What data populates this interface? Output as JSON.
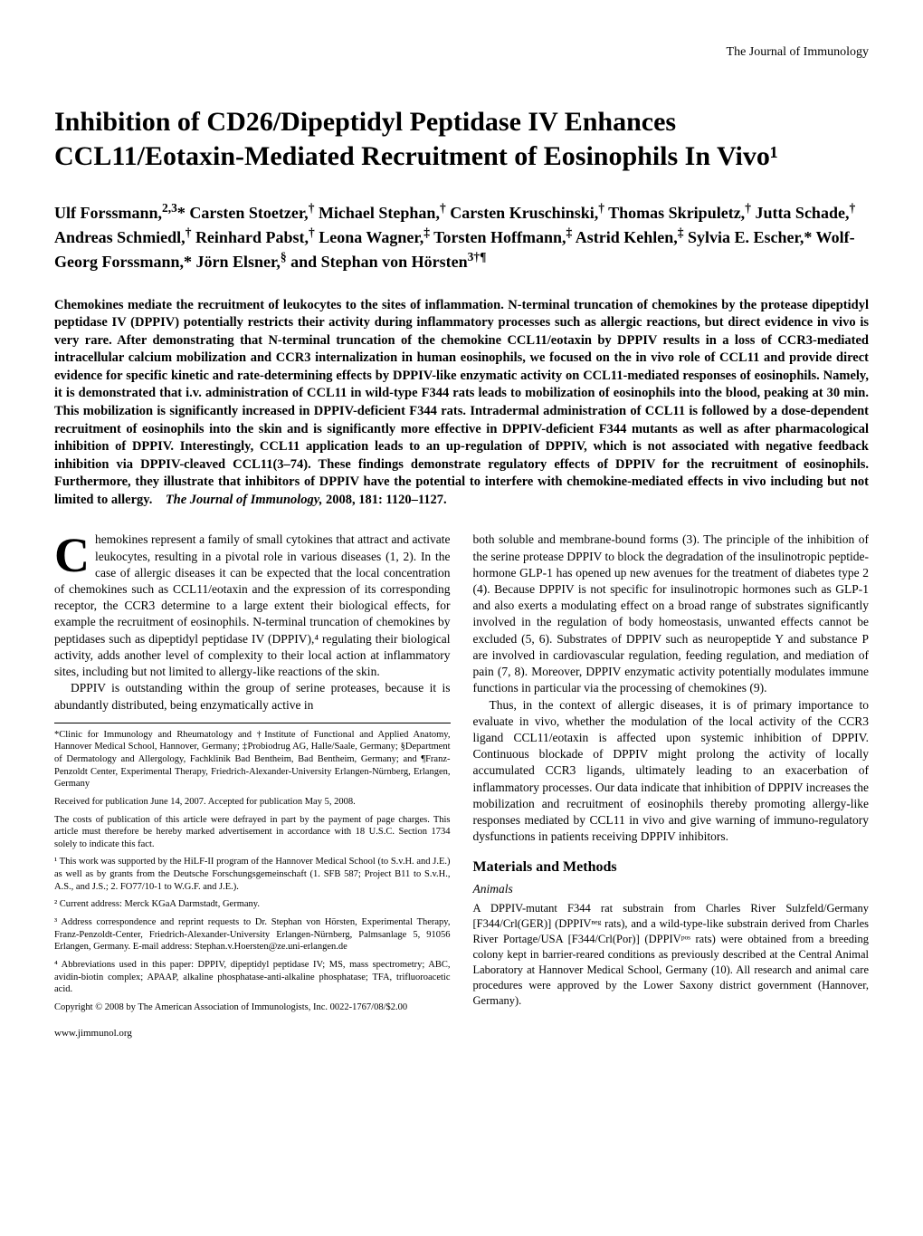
{
  "journal_header": "The Journal of Immunology",
  "title": "Inhibition of CD26/Dipeptidyl Peptidase IV Enhances CCL11/Eotaxin-Mediated Recruitment of Eosinophils In Vivo¹",
  "authors_html": "Ulf Forssmann,<sup>2,3</sup>* Carsten Stoetzer,<sup>†</sup> Michael Stephan,<sup>†</sup> Carsten Kruschinski,<sup>†</sup> Thomas Skripuletz,<sup>†</sup> Jutta Schade,<sup>†</sup> Andreas Schmiedl,<sup>†</sup> Reinhard Pabst,<sup>†</sup> Leona Wagner,<sup>‡</sup> Torsten Hoffmann,<sup>‡</sup> Astrid Kehlen,<sup>‡</sup> Sylvia E. Escher,* Wolf-Georg Forssmann,* Jörn Elsner,<sup>§</sup> and Stephan von Hörsten<sup>3†¶</sup>",
  "abstract_main": "Chemokines mediate the recruitment of leukocytes to the sites of inflammation. N-terminal truncation of chemokines by the protease dipeptidyl peptidase IV (DPPIV) potentially restricts their activity during inflammatory processes such as allergic reactions, but direct evidence in vivo is very rare. After demonstrating that N-terminal truncation of the chemokine CCL11/eotaxin by DPPIV results in a loss of CCR3-mediated intracellular calcium mobilization and CCR3 internalization in human eosinophils, we focused on the in vivo role of CCL11 and provide direct evidence for specific kinetic and rate-determining effects by DPPIV-like enzymatic activity on CCL11-mediated responses of eosinophils. Namely, it is demonstrated that i.v. administration of CCL11 in wild-type F344 rats leads to mobilization of eosinophils into the blood, peaking at 30 min. This mobilization is significantly increased in DPPIV-deficient F344 rats. Intradermal administration of CCL11 is followed by a dose-dependent recruitment of eosinophils into the skin and is significantly more effective in DPPIV-deficient F344 mutants as well as after pharmacological inhibition of DPPIV. Interestingly, CCL11 application leads to an up-regulation of DPPIV, which is not associated with negative feedback inhibition via DPPIV-cleaved CCL11(3–74). These findings demonstrate regulatory effects of DPPIV for the recruitment of eosinophils. Furthermore, they illustrate that inhibitors of DPPIV have the potential to interfere with chemokine-mediated effects in vivo including but not limited to allergy.",
  "abstract_citation": "The Journal of Immunology,",
  "abstract_citation_details": " 2008, 181: 1120–1127.",
  "body": {
    "left": {
      "dropcap": "C",
      "p1_rest": "hemokines represent a family of small cytokines that attract and activate leukocytes, resulting in a pivotal role in various diseases (1, 2). In the case of allergic diseases it can be expected that the local concentration of chemokines such as CCL11/eotaxin and the expression of its corresponding receptor, the CCR3 determine to a large extent their biological effects, for example the recruitment of eosinophils. N-terminal truncation of chemokines by peptidases such as dipeptidyl peptidase IV (DPPIV),⁴ regulating their biological activity, adds another level of complexity to their local action at inflammatory sites, including but not limited to allergy-like reactions of the skin.",
      "p2": "DPPIV is outstanding within the group of serine proteases, because it is abundantly distributed, being enzymatically active in"
    },
    "right": {
      "p1": "both soluble and membrane-bound forms (3). The principle of the inhibition of the serine protease DPPIV to block the degradation of the insulinotropic peptide-hormone GLP-1 has opened up new avenues for the treatment of diabetes type 2 (4). Because DPPIV is not specific for insulinotropic hormones such as GLP-1 and also exerts a modulating effect on a broad range of substrates significantly involved in the regulation of body homeostasis, unwanted effects cannot be excluded (5, 6). Substrates of DPPIV such as neuropeptide Y and substance P are involved in cardiovascular regulation, feeding regulation, and mediation of pain (7, 8). Moreover, DPPIV enzymatic activity potentially modulates immune functions in particular via the processing of chemokines (9).",
      "p2": "Thus, in the context of allergic diseases, it is of primary importance to evaluate in vivo, whether the modulation of the local activity of the CCR3 ligand CCL11/eotaxin is affected upon systemic inhibition of DPPIV. Continuous blockade of DPPIV might prolong the activity of locally accumulated CCR3 ligands, ultimately leading to an exacerbation of inflammatory processes. Our data indicate that inhibition of DPPIV increases the mobilization and recruitment of eosinophils thereby promoting allergy-like responses mediated by CCL11 in vivo and give warning of immuno-regulatory dysfunctions in patients receiving DPPIV inhibitors.",
      "section_heading": "Materials and Methods",
      "subsection": "Animals",
      "p3": "A DPPIV-mutant F344 rat substrain from Charles River Sulzfeld/Germany [F344/Crl(GER)] (DPPIVⁿᵉᵍ rats), and a wild-type-like substrain derived from Charles River Portage/USA [F344/Crl(Por)] (DPPIVᵖᵒˢ rats) were obtained from a breeding colony kept in barrier-reared conditions as previously described at the Central Animal Laboratory at Hannover Medical School, Germany (10). All research and animal care procedures were approved by the Lower Saxony district government (Hannover, Germany)."
    }
  },
  "footnotes": {
    "affil": "*Clinic for Immunology and Rheumatology and †Institute of Functional and Applied Anatomy, Hannover Medical School, Hannover, Germany; ‡Probiodrug AG, Halle/Saale, Germany; §Department of Dermatology and Allergology, Fachklinik Bad Bentheim, Bad Bentheim, Germany; and ¶Franz-Penzoldt Center, Experimental Therapy, Friedrich-Alexander-University Erlangen-Nürnberg, Erlangen, Germany",
    "received": "Received for publication June 14, 2007. Accepted for publication May 5, 2008.",
    "costs": "The costs of publication of this article were defrayed in part by the payment of page charges. This article must therefore be hereby marked advertisement in accordance with 18 U.S.C. Section 1734 solely to indicate this fact.",
    "n1": "¹ This work was supported by the HiLF-II program of the Hannover Medical School (to S.v.H. and J.E.) as well as by grants from the Deutsche Forschungsgemeinschaft (1. SFB 587; Project B11 to S.v.H., A.S., and J.S.; 2. FO77/10-1 to W.G.F. and J.E.).",
    "n2": "² Current address: Merck KGaA Darmstadt, Germany.",
    "n3": "³ Address correspondence and reprint requests to Dr. Stephan von Hörsten, Experimental Therapy, Franz-Penzoldt-Center, Friedrich-Alexander-University Erlangen-Nürnberg, Palmsanlage 5, 91056 Erlangen, Germany. E-mail address: Stephan.v.Hoersten@ze.uni-erlangen.de",
    "n4": "⁴ Abbreviations used in this paper: DPPIV, dipeptidyl peptidase IV; MS, mass spectrometry; ABC, avidin-biotin complex; APAAP, alkaline phosphatase-anti-alkaline phosphatase; TFA, trifluoroacetic acid.",
    "copyright": "Copyright © 2008 by The American Association of Immunologists, Inc. 0022-1767/08/$2.00"
  },
  "footer_url": "www.jimmunol.org"
}
